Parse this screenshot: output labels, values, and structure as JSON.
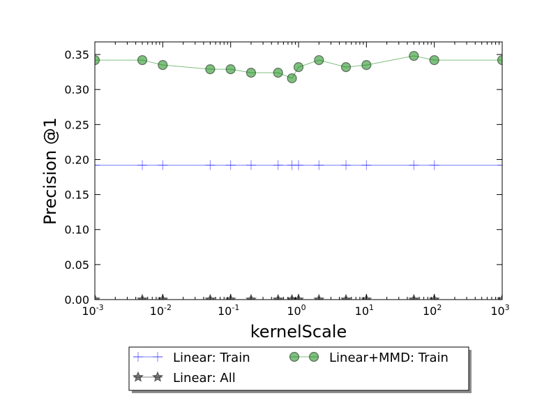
{
  "chart_data": {
    "type": "line",
    "xlabel": "kernelScale",
    "ylabel": "Precision @1",
    "xscale": "log",
    "xlim": [
      0.001,
      1000
    ],
    "ylim": [
      0.0,
      0.368
    ],
    "xticks": [
      {
        "value": 0.001,
        "base": "10",
        "exp": "-3"
      },
      {
        "value": 0.01,
        "base": "10",
        "exp": "-2"
      },
      {
        "value": 0.1,
        "base": "10",
        "exp": "-1"
      },
      {
        "value": 1,
        "base": "10",
        "exp": "0"
      },
      {
        "value": 10,
        "base": "10",
        "exp": "1"
      },
      {
        "value": 100,
        "base": "10",
        "exp": "2"
      },
      {
        "value": 1000,
        "base": "10",
        "exp": "3"
      }
    ],
    "yticks": [
      {
        "value": 0.0,
        "label": "0.00"
      },
      {
        "value": 0.05,
        "label": "0.05"
      },
      {
        "value": 0.1,
        "label": "0.10"
      },
      {
        "value": 0.15,
        "label": "0.15"
      },
      {
        "value": 0.2,
        "label": "0.20"
      },
      {
        "value": 0.25,
        "label": "0.25"
      },
      {
        "value": 0.3,
        "label": "0.30"
      },
      {
        "value": 0.35,
        "label": "0.35"
      }
    ],
    "x": [
      0.001,
      0.005,
      0.01,
      0.05,
      0.1,
      0.2,
      0.5,
      0.8,
      1,
      2,
      5,
      10,
      50,
      100,
      1000
    ],
    "series": [
      {
        "name": "Linear: Train",
        "marker": "plus",
        "color": "#0000ff",
        "values": [
          0.192,
          0.192,
          0.192,
          0.192,
          0.192,
          0.192,
          0.192,
          0.192,
          0.192,
          0.192,
          0.192,
          0.192,
          0.192,
          0.192,
          0.192
        ]
      },
      {
        "name": "Linear: All",
        "marker": "star",
        "color": "#000000",
        "values": [
          0.0,
          0.0,
          0.0,
          0.0,
          0.0,
          0.0,
          0.0,
          0.0,
          0.0,
          0.0,
          0.0,
          0.0,
          0.0,
          0.0,
          0.0
        ]
      },
      {
        "name": "Linear+MMD: Train",
        "marker": "circle",
        "color": "#008000",
        "values": [
          0.342,
          0.342,
          0.335,
          0.329,
          0.329,
          0.324,
          0.324,
          0.316,
          0.332,
          0.342,
          0.332,
          0.335,
          0.348,
          0.342,
          0.342
        ]
      }
    ],
    "legend": {
      "placement": "below plot",
      "columns": [
        [
          "Linear: Train",
          "Linear: All"
        ],
        [
          "Linear+MMD: Train"
        ]
      ]
    },
    "grid": false
  }
}
